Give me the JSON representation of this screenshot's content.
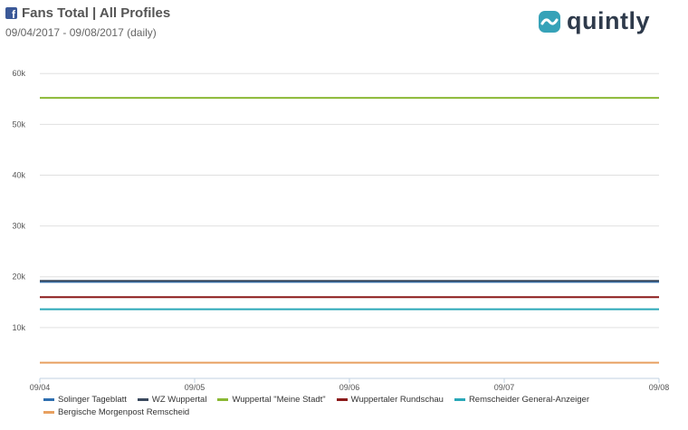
{
  "header": {
    "title": "Fans Total | All Profiles",
    "subtitle": "09/04/2017 - 09/08/2017 (daily)",
    "facebook_icon": "facebook-icon",
    "logo_text": "quintly"
  },
  "colors": {
    "grid": "#e0e0e0",
    "axis": "#c0d0e0"
  },
  "chart_data": {
    "type": "line",
    "x": [
      "09/04",
      "09/05",
      "09/06",
      "09/07",
      "09/08"
    ],
    "yticks": [
      "10k",
      "20k",
      "30k",
      "40k",
      "50k",
      "60k"
    ],
    "ylim": [
      0,
      62000
    ],
    "series": [
      {
        "name": "Solinger Tageblatt",
        "color": "#2f6fb0",
        "values": [
          19000,
          19000,
          19000,
          19000,
          19000
        ]
      },
      {
        "name": "WZ Wuppertal",
        "color": "#3b4a5e",
        "values": [
          19200,
          19200,
          19200,
          19200,
          19200
        ]
      },
      {
        "name": "Wuppertal \"Meine Stadt\"",
        "color": "#8ab834",
        "values": [
          55200,
          55200,
          55200,
          55200,
          55200
        ]
      },
      {
        "name": "Wuppertaler Rundschau",
        "color": "#8b1a1a",
        "values": [
          16000,
          16000,
          16000,
          16000,
          16000
        ]
      },
      {
        "name": "Remscheider General-Anzeiger",
        "color": "#2aa8b8",
        "values": [
          13600,
          13600,
          13600,
          13600,
          13600
        ]
      },
      {
        "name": "Bergische Morgenpost Remscheid",
        "color": "#e8a060",
        "values": [
          3100,
          3100,
          3100,
          3100,
          3100
        ]
      }
    ]
  }
}
